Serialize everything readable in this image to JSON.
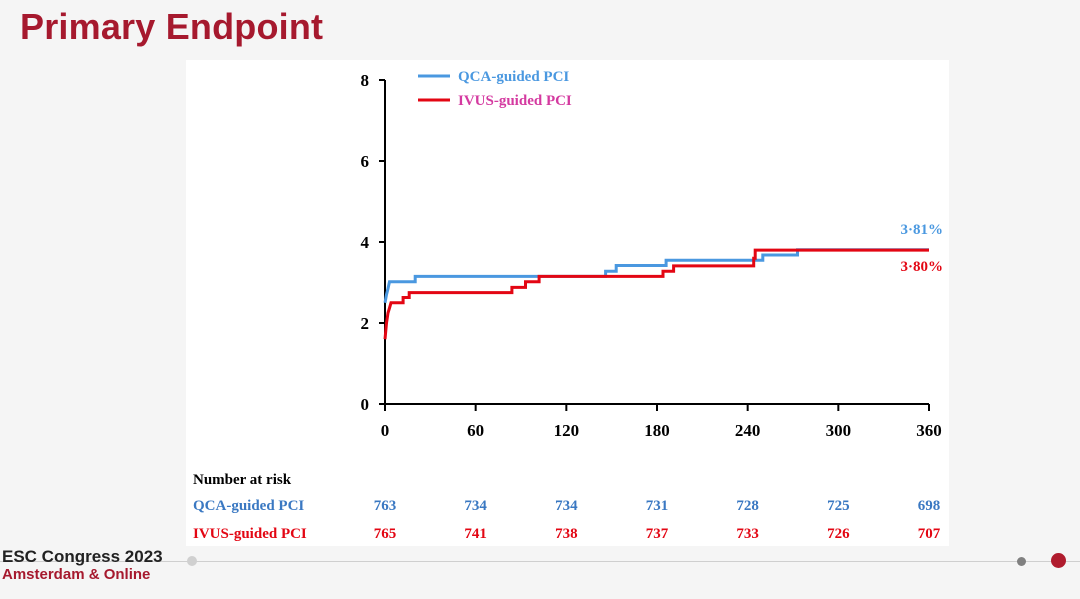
{
  "slide": {
    "title": "Primary Endpoint"
  },
  "footer": {
    "line1": "ESC Congress 2023",
    "line2": "Amsterdam & Online"
  },
  "chart_data": {
    "type": "line",
    "title": "",
    "xlabel": "",
    "ylabel": "",
    "xlim": [
      0,
      360
    ],
    "ylim": [
      0,
      8
    ],
    "x_ticks": [
      "0",
      "60",
      "120",
      "180",
      "240",
      "300",
      "360"
    ],
    "y_ticks": [
      "0",
      "2",
      "4",
      "6",
      "8"
    ],
    "legend": "top-left",
    "grid": false,
    "series": [
      {
        "name": "QCA-guided PCI",
        "color": "#4a98e0",
        "end_label": "3·81%",
        "points": [
          [
            0,
            2.5
          ],
          [
            1,
            2.7
          ],
          [
            2,
            2.85
          ],
          [
            3,
            3.02
          ],
          [
            20,
            3.02
          ],
          [
            20,
            3.15
          ],
          [
            146,
            3.15
          ],
          [
            146,
            3.28
          ],
          [
            153,
            3.28
          ],
          [
            153,
            3.42
          ],
          [
            186,
            3.42
          ],
          [
            186,
            3.55
          ],
          [
            250,
            3.55
          ],
          [
            250,
            3.68
          ],
          [
            273,
            3.68
          ],
          [
            273,
            3.81
          ],
          [
            360,
            3.81
          ]
        ]
      },
      {
        "name": "IVUS-guided PCI",
        "color": "#e30613",
        "end_label": "3·80%",
        "points": [
          [
            0,
            1.6
          ],
          [
            1,
            2.0
          ],
          [
            2,
            2.25
          ],
          [
            3,
            2.37
          ],
          [
            4,
            2.5
          ],
          [
            12,
            2.5
          ],
          [
            12,
            2.63
          ],
          [
            16,
            2.63
          ],
          [
            16,
            2.75
          ],
          [
            84,
            2.75
          ],
          [
            84,
            2.88
          ],
          [
            93,
            2.88
          ],
          [
            93,
            3.02
          ],
          [
            102,
            3.02
          ],
          [
            102,
            3.15
          ],
          [
            184,
            3.15
          ],
          [
            184,
            3.28
          ],
          [
            191,
            3.28
          ],
          [
            191,
            3.41
          ],
          [
            244,
            3.41
          ],
          [
            244,
            3.6
          ],
          [
            245,
            3.6
          ],
          [
            245,
            3.8
          ],
          [
            360,
            3.8
          ]
        ]
      }
    ],
    "risk_table": {
      "header": "Number at risk",
      "rows": [
        {
          "label": "QCA-guided PCI",
          "color": "#3a78c2",
          "values": [
            "763",
            "734",
            "734",
            "731",
            "728",
            "725",
            "698"
          ]
        },
        {
          "label": "IVUS-guided PCI",
          "color": "#e30613",
          "values": [
            "765",
            "741",
            "738",
            "737",
            "733",
            "726",
            "707"
          ]
        }
      ]
    }
  }
}
